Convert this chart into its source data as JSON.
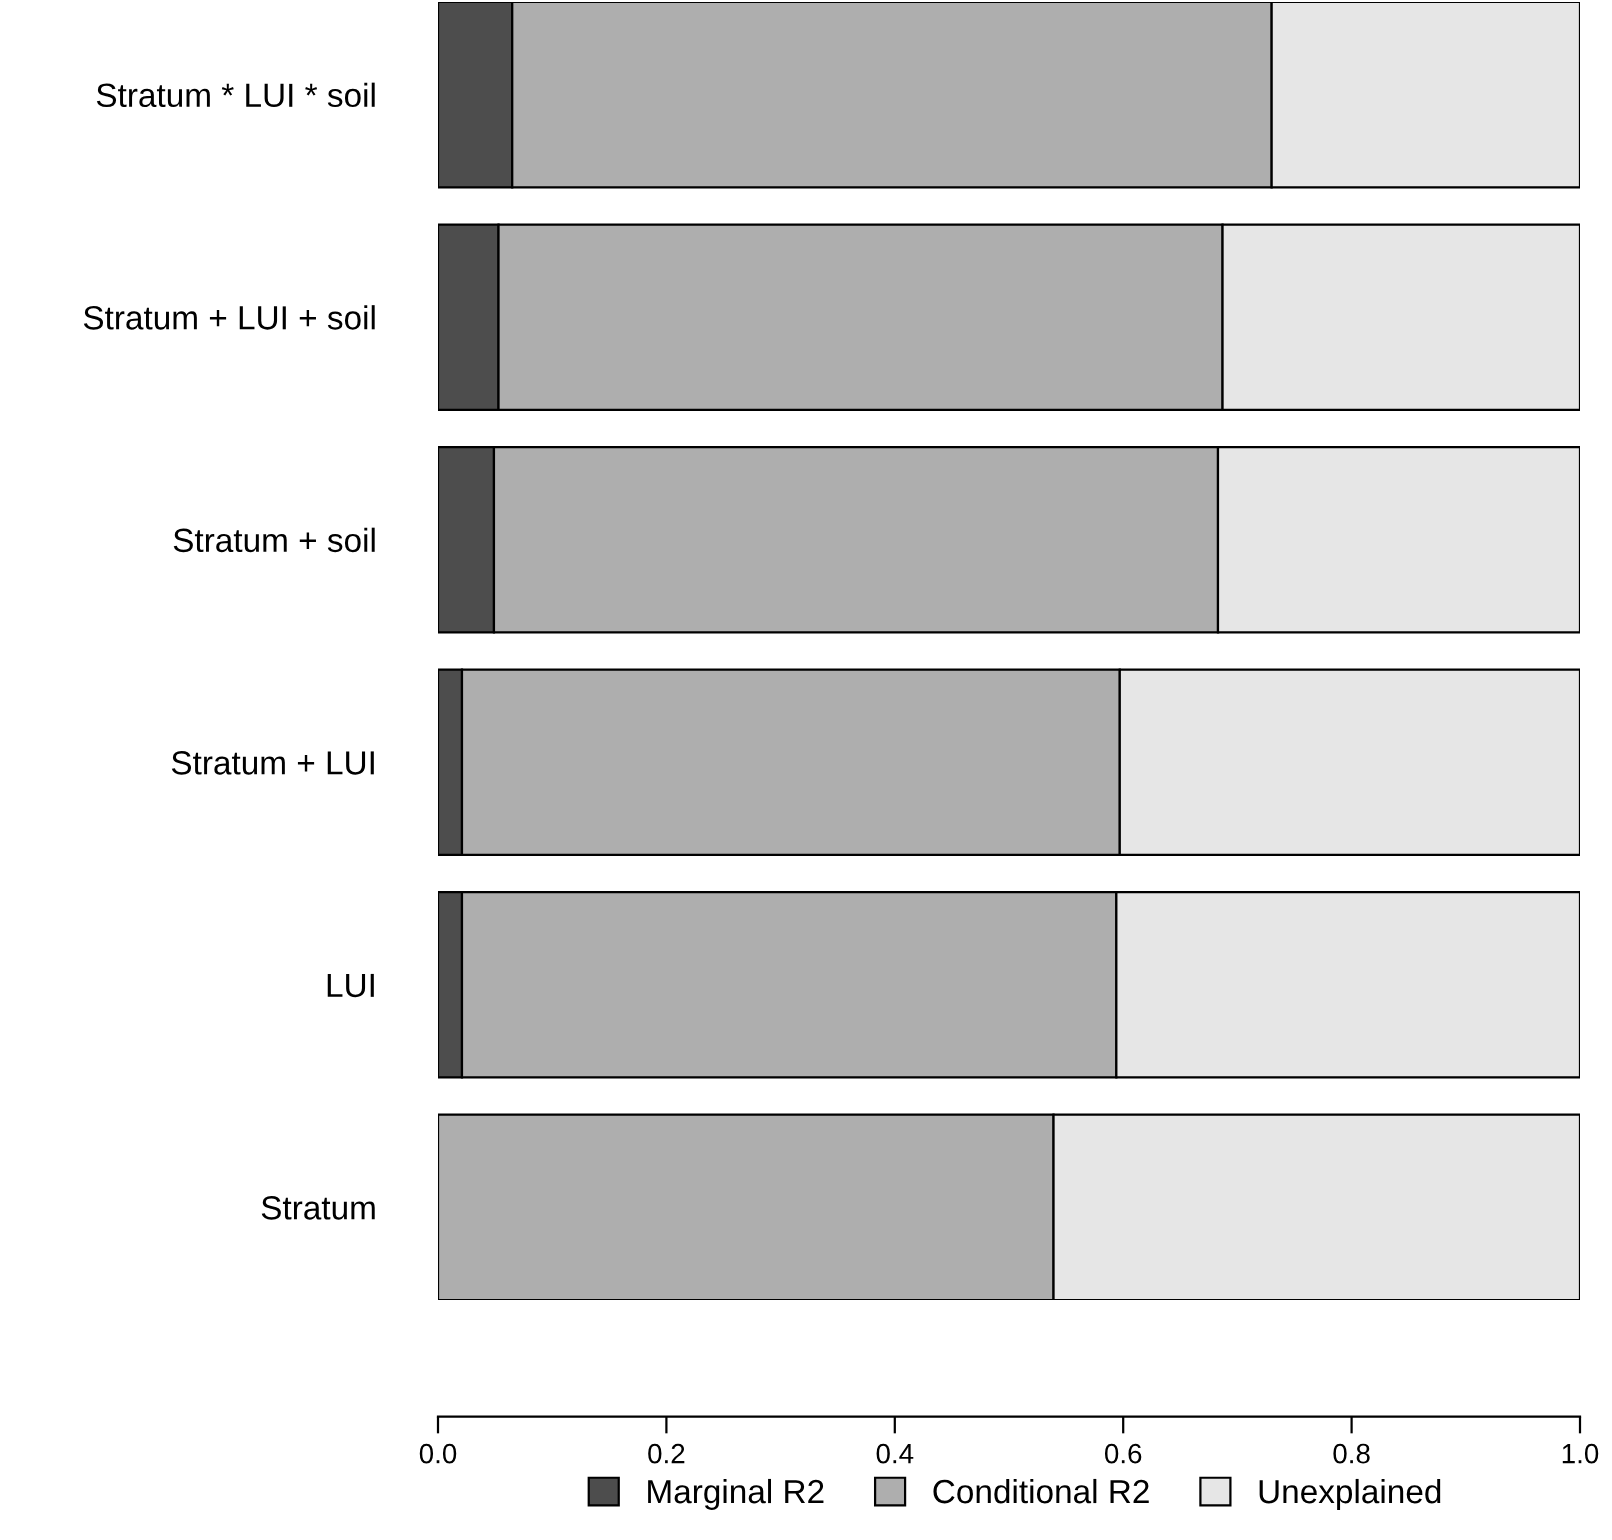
{
  "chart_data": {
    "type": "bar",
    "orientation": "horizontal",
    "stacked": true,
    "categories": [
      "Stratum * LUI * soil",
      "Stratum + LUI + soil",
      "Stratum + soil",
      "Stratum + LUI",
      "LUI",
      "Stratum"
    ],
    "series": [
      {
        "name": "Marginal R2",
        "color": "#4d4d4d",
        "values": [
          0.065,
          0.053,
          0.049,
          0.021,
          0.021,
          0.0
        ]
      },
      {
        "name": "Conditional R2",
        "color": "#aeaeae",
        "values": [
          0.665,
          0.634,
          0.634,
          0.576,
          0.573,
          0.539
        ]
      },
      {
        "name": "Unexplained",
        "color": "#e6e6e6",
        "values": [
          0.27,
          0.313,
          0.317,
          0.403,
          0.406,
          0.461
        ]
      }
    ],
    "xlim": [
      0,
      1
    ],
    "xticks": [
      {
        "value": 0,
        "label": "0.0"
      },
      {
        "value": 0.2,
        "label": "0.2"
      },
      {
        "value": 0.4,
        "label": "0.4"
      },
      {
        "value": 0.6,
        "label": "0.6"
      },
      {
        "value": 0.8,
        "label": "0.8"
      },
      {
        "value": 1,
        "label": "1.0"
      }
    ],
    "grid": false,
    "legend": "bottom"
  }
}
